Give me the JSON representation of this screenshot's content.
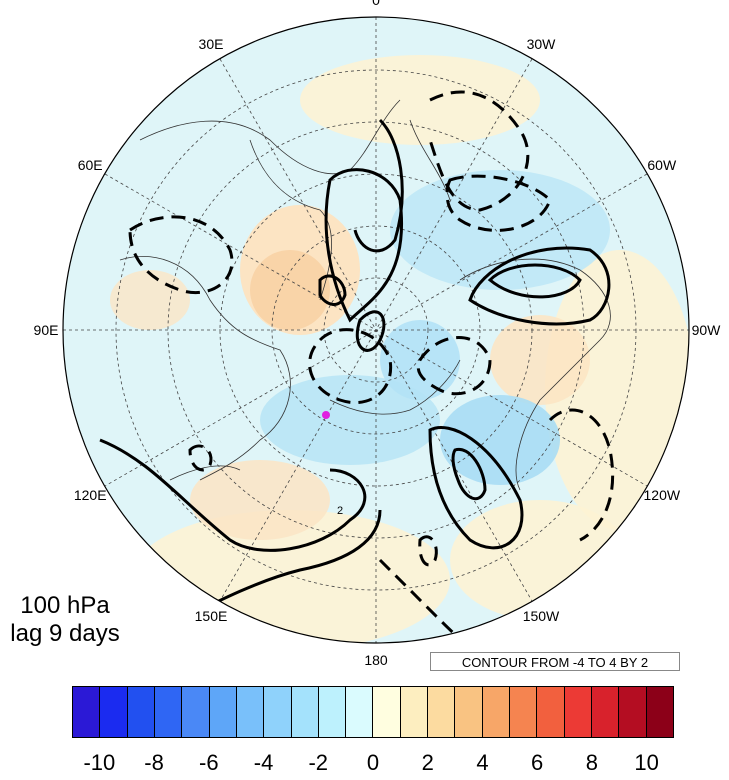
{
  "map": {
    "longitude_labels": [
      {
        "text": "0",
        "lon": 0
      },
      {
        "text": "30W",
        "lon": -30
      },
      {
        "text": "60W",
        "lon": -60
      },
      {
        "text": "90W",
        "lon": -90
      },
      {
        "text": "120W",
        "lon": -120
      },
      {
        "text": "150W",
        "lon": -150
      },
      {
        "text": "180",
        "lon": 180
      },
      {
        "text": "150E",
        "lon": 150
      },
      {
        "text": "120E",
        "lon": 120
      },
      {
        "text": "90E",
        "lon": 90
      },
      {
        "text": "60E",
        "lon": 60
      },
      {
        "text": "30E",
        "lon": 30
      }
    ],
    "contour_label": "2",
    "marker_color": "#e020e0"
  },
  "level_label": {
    "line1": "100 hPa",
    "line2": "lag 9 days"
  },
  "contour_info": "CONTOUR FROM -4 TO 4 BY 2",
  "colorbar": {
    "colors": [
      "#2b19d6",
      "#1b2bf0",
      "#2250f0",
      "#2f66f4",
      "#4a88f6",
      "#5ea6f8",
      "#79c0fa",
      "#8fd2fb",
      "#a4e2fc",
      "#bdf1fd",
      "#dafbfe",
      "#fffee0",
      "#fdeec0",
      "#fcdba0",
      "#f9c382",
      "#f7a668",
      "#f58450",
      "#f2603e",
      "#ec3a35",
      "#d8222c",
      "#b40d22",
      "#8c0018"
    ],
    "tick_labels": [
      "-10",
      "-8",
      "-6",
      "-4",
      "-2",
      "0",
      "2",
      "4",
      "6",
      "8",
      "10"
    ]
  }
}
